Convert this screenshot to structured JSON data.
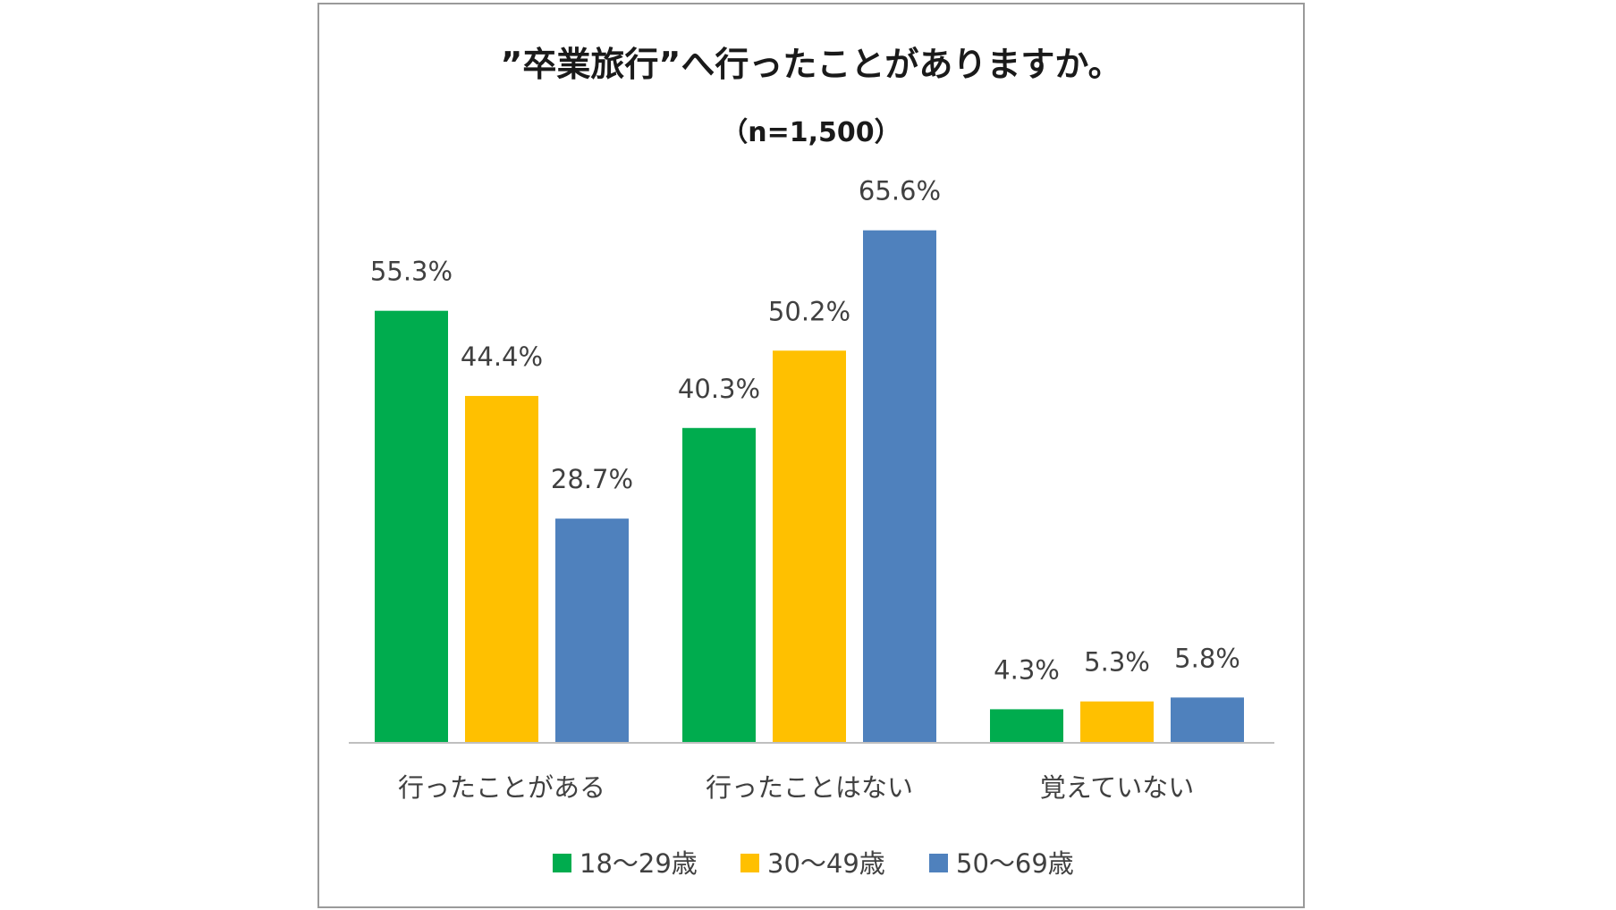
{
  "chart_data": {
    "type": "bar",
    "title": "”卒業旅行”へ行ったことがありますか。",
    "subtitle": "（n=1,500）",
    "categories": [
      "行ったことがある",
      "行ったことはない",
      "覚えていない"
    ],
    "series": [
      {
        "name": "18～29歳",
        "color": "#00ac4e",
        "values": [
          55.3,
          40.3,
          4.3
        ],
        "labels": [
          "55.3%",
          "40.3%",
          "4.3%"
        ]
      },
      {
        "name": "30～49歳",
        "color": "#ffc000",
        "values": [
          44.4,
          50.2,
          5.3
        ],
        "labels": [
          "44.4%",
          "50.2%",
          "5.3%"
        ]
      },
      {
        "name": "50～69歳",
        "color": "#4f81bd",
        "values": [
          28.7,
          65.6,
          5.8
        ],
        "labels": [
          "28.7%",
          "65.6%",
          "5.8%"
        ]
      }
    ],
    "ylim": [
      0,
      66
    ],
    "grid": false,
    "legend_position": "bottom",
    "axis_color": "#bfbfbf"
  }
}
